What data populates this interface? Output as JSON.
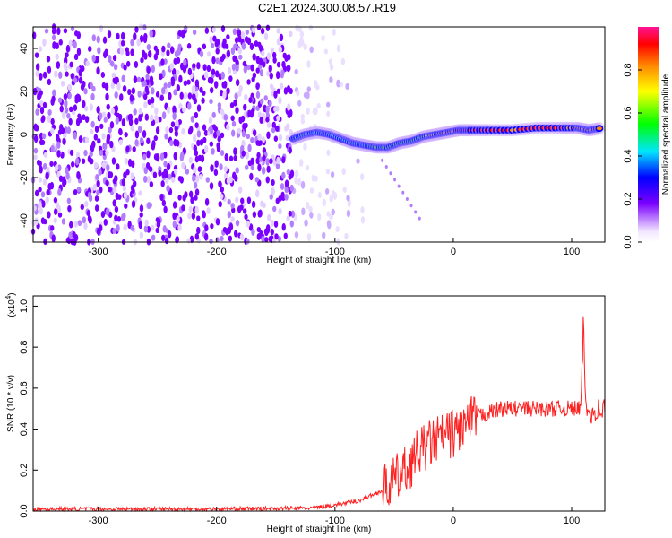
{
  "title": "C2E1.2024.300.08.57.R19",
  "chart_data": [
    {
      "type": "heatmap",
      "xlabel": "Height of straight line (km)",
      "ylabel": "Frequency (Hz)",
      "xlim": [
        -355,
        128
      ],
      "ylim": [
        -50,
        50
      ],
      "x_ticks": [
        -300,
        -200,
        -100,
        0,
        100
      ],
      "y_ticks": [
        -40,
        -20,
        0,
        20,
        40
      ],
      "colorbar": {
        "label": "Normalized spectral amplitude",
        "range": [
          0,
          1
        ],
        "ticks": [
          "0.0",
          "0.2",
          "0.4",
          "0.6",
          "0.8"
        ],
        "colors": [
          "#f2e6ff",
          "#7a00ff",
          "#0000ff",
          "#00e5ff",
          "#00ff00",
          "#ffff00",
          "#ff8800",
          "#ff0000",
          "#ff1493"
        ]
      },
      "noise_region_x": [
        -355,
        -75
      ],
      "ridge": {
        "x": [
          -135,
          -125,
          -115,
          -105,
          -95,
          -85,
          -75,
          -65,
          -55,
          -45,
          -35,
          -25,
          -15,
          -5,
          5,
          15,
          30,
          50,
          70,
          90,
          105,
          115,
          125
        ],
        "freq": [
          -2,
          0,
          1,
          0,
          -2,
          -4,
          -5,
          -6,
          -6,
          -4,
          -3,
          -1,
          0,
          1,
          2,
          2,
          2,
          2,
          3,
          3,
          3,
          2,
          3
        ],
        "amp": [
          0.3,
          0.45,
          0.4,
          0.35,
          0.35,
          0.45,
          0.4,
          0.5,
          0.45,
          0.5,
          0.5,
          0.5,
          0.65,
          0.75,
          0.85,
          0.9,
          0.95,
          0.8,
          0.9,
          0.85,
          0.7,
          0.8,
          0.75
        ]
      },
      "grid": false
    },
    {
      "type": "line",
      "xlabel": "Height of straight line (km)",
      "ylabel": "SNR (10 * v/v)",
      "y_multiplier": "(x10",
      "y_multiplier_exp": "4",
      "xlim": [
        -355,
        128
      ],
      "ylim": [
        0,
        1.05
      ],
      "x_ticks": [
        -300,
        -200,
        -100,
        0,
        100
      ],
      "y_ticks": [
        "0.0",
        "0.2",
        "0.4",
        "0.6",
        "0.8",
        "1.0"
      ],
      "series": [
        {
          "color": "#ff2020",
          "x": [
            -355,
            -300,
            -200,
            -120,
            -100,
            -80,
            -60,
            -50,
            -40,
            -30,
            -20,
            -10,
            0,
            10,
            20,
            30,
            40,
            60,
            80,
            100,
            105,
            108,
            110,
            112,
            120,
            128
          ],
          "y": [
            0.01,
            0.01,
            0.01,
            0.015,
            0.03,
            0.05,
            0.1,
            0.15,
            0.2,
            0.28,
            0.33,
            0.36,
            0.38,
            0.42,
            0.46,
            0.48,
            0.5,
            0.5,
            0.5,
            0.5,
            0.5,
            0.5,
            0.95,
            0.48,
            0.49,
            0.5
          ]
        }
      ],
      "grid": false
    }
  ]
}
